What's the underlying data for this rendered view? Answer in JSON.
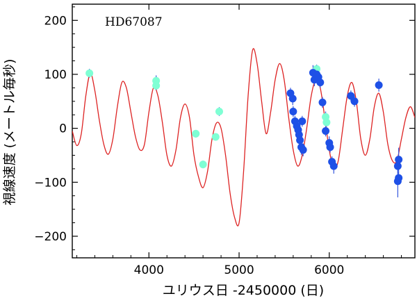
{
  "chart_data": {
    "type": "scatter",
    "title": "",
    "annotation": "HD67087",
    "xlabel": "ユリウス日 -2450000 (日)",
    "ylabel": "視線速度 (メートル毎秒)",
    "xlim": [
      3150,
      6950
    ],
    "ylim": [
      -240,
      230
    ],
    "xticks": [
      4000,
      5000,
      6000
    ],
    "xtick_labels": [
      "4000",
      "5000",
      "6000"
    ],
    "yticks": [
      -200,
      -100,
      0,
      100,
      200
    ],
    "ytick_labels": [
      "−200",
      "−100",
      "0",
      "100",
      "200"
    ],
    "grid": false,
    "legend": "none",
    "colors": {
      "model_curve": "#dd2222",
      "series_1": "#7fffd4",
      "series_2": "#1e50e6",
      "error_bar": "#3355dd",
      "axes": "#000000"
    },
    "model_curve": {
      "description_free": true,
      "x": [
        3150,
        3200,
        3250,
        3300,
        3350,
        3400,
        3450,
        3500,
        3550,
        3600,
        3650,
        3700,
        3750,
        3800,
        3850,
        3900,
        3950,
        4000,
        4050,
        4100,
        4150,
        4200,
        4250,
        4300,
        4350,
        4400,
        4450,
        4500,
        4550,
        4600,
        4650,
        4700,
        4750,
        4800,
        4850,
        4900,
        4950,
        5000,
        5050,
        5100,
        5150,
        5200,
        5250,
        5300,
        5350,
        5400,
        5450,
        5500,
        5550,
        5600,
        5650,
        5700,
        5750,
        5800,
        5850,
        5900,
        5950,
        6000,
        6050,
        6100,
        6150,
        6200,
        6250,
        6300,
        6350,
        6400,
        6450,
        6500,
        6550,
        6600,
        6650,
        6700,
        6750,
        6800,
        6850,
        6900,
        6950
      ],
      "y": [
        -5,
        -32,
        -10,
        60,
        102,
        70,
        15,
        -30,
        -48,
        -20,
        40,
        85,
        75,
        30,
        -15,
        -40,
        -30,
        30,
        75,
        60,
        10,
        -50,
        -70,
        -40,
        20,
        45,
        20,
        -50,
        -90,
        -110,
        -80,
        -20,
        10,
        0,
        -50,
        -120,
        -165,
        -175,
        -80,
        60,
        145,
        120,
        50,
        -10,
        30,
        90,
        120,
        90,
        20,
        -40,
        -70,
        -50,
        0,
        60,
        90,
        75,
        20,
        -40,
        -75,
        -60,
        0,
        60,
        85,
        50,
        -20,
        -50,
        -20,
        40,
        65,
        30,
        -30,
        -60,
        -60,
        -20,
        20,
        40,
        20
      ]
    },
    "series": [
      {
        "color": "#7fffd4",
        "points": [
          {
            "x": 3340,
            "y": 102,
            "err": 8
          },
          {
            "x": 4080,
            "y": 88,
            "err": 10
          },
          {
            "x": 4080,
            "y": 79,
            "err": 8
          },
          {
            "x": 4520,
            "y": -10,
            "err": 7
          },
          {
            "x": 4600,
            "y": -67,
            "err": 7
          },
          {
            "x": 4740,
            "y": -16,
            "err": 7
          },
          {
            "x": 4780,
            "y": 31,
            "err": 8
          },
          {
            "x": 5860,
            "y": 110,
            "err": 8
          },
          {
            "x": 5960,
            "y": 21,
            "err": 10
          },
          {
            "x": 5970,
            "y": 11,
            "err": 8
          }
        ]
      },
      {
        "color": "#1e50e6",
        "points": [
          {
            "x": 5570,
            "y": 65,
            "err": 10
          },
          {
            "x": 5595,
            "y": 55,
            "err": 12
          },
          {
            "x": 5600,
            "y": 31,
            "err": 10
          },
          {
            "x": 5620,
            "y": 13,
            "err": 10
          },
          {
            "x": 5640,
            "y": 4,
            "err": 10
          },
          {
            "x": 5655,
            "y": -3,
            "err": 10
          },
          {
            "x": 5665,
            "y": -12,
            "err": 10
          },
          {
            "x": 5675,
            "y": -22,
            "err": 12
          },
          {
            "x": 5690,
            "y": -35,
            "err": 14
          },
          {
            "x": 5710,
            "y": -40,
            "err": 12
          },
          {
            "x": 5700,
            "y": 13,
            "err": 10
          },
          {
            "x": 5820,
            "y": 103,
            "err": 14
          },
          {
            "x": 5835,
            "y": 90,
            "err": 12
          },
          {
            "x": 5860,
            "y": 100,
            "err": 14
          },
          {
            "x": 5880,
            "y": 95,
            "err": 12
          },
          {
            "x": 5900,
            "y": 85,
            "err": 10
          },
          {
            "x": 5925,
            "y": 48,
            "err": 10
          },
          {
            "x": 5960,
            "y": -5,
            "err": 10
          },
          {
            "x": 6000,
            "y": -27,
            "err": 12
          },
          {
            "x": 6010,
            "y": -35,
            "err": 10
          },
          {
            "x": 6030,
            "y": -62,
            "err": 10
          },
          {
            "x": 6050,
            "y": -70,
            "err": 14
          },
          {
            "x": 6240,
            "y": 60,
            "err": 10
          },
          {
            "x": 6280,
            "y": 50,
            "err": 10
          },
          {
            "x": 6550,
            "y": 80,
            "err": 12
          },
          {
            "x": 6770,
            "y": -58,
            "err": 22
          },
          {
            "x": 6760,
            "y": -70,
            "err": 14
          },
          {
            "x": 6760,
            "y": -98,
            "err": 30
          },
          {
            "x": 6770,
            "y": -92,
            "err": 12
          }
        ]
      }
    ]
  }
}
